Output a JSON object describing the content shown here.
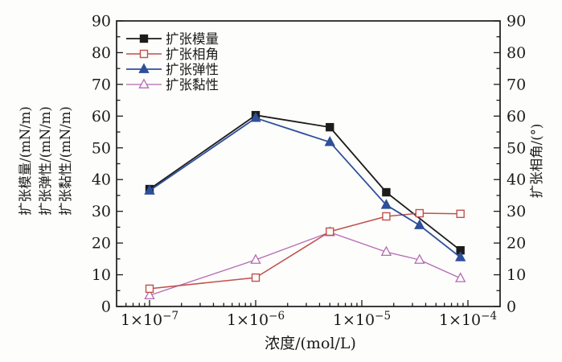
{
  "figure": {
    "background": "#fdfdfb",
    "axis_color": "#1a1a1a",
    "text_color": "#1a1a1a"
  },
  "chart_data": {
    "type": "line",
    "x_axis": {
      "label": "浓度/(mol/L)",
      "scale": "log",
      "min": 5e-08,
      "max": 0.0002,
      "major_ticks": [
        {
          "value": 1e-07,
          "label_base": "1×10",
          "label_exp": "−7"
        },
        {
          "value": 1e-06,
          "label_base": "1×10",
          "label_exp": "−6"
        },
        {
          "value": 1e-05,
          "label_base": "1×10",
          "label_exp": "−5"
        },
        {
          "value": 0.0001,
          "label_base": "1×10",
          "label_exp": "−4"
        }
      ]
    },
    "y_axis_left": {
      "labels": [
        "扩张模量/(mN/m)",
        "扩张弹性/(mN/m)",
        "扩张黏性/(mN/m)"
      ],
      "min": 0,
      "max": 90,
      "major_step": 10,
      "minor_step": 5,
      "ticks": [
        0,
        10,
        20,
        30,
        40,
        50,
        60,
        70,
        80,
        90
      ]
    },
    "y_axis_right": {
      "label": "扩张相角/(°)",
      "min": 0,
      "max": 90,
      "major_step": 10,
      "minor_step": 5,
      "ticks": [
        0,
        10,
        20,
        30,
        40,
        50,
        60,
        70,
        80,
        90
      ]
    },
    "series": [
      {
        "id": "dilational-modulus",
        "name": "扩张模量",
        "color": "#1c1c1c",
        "marker": "square",
        "marker_fill": "solid",
        "stroke_width": 1.8,
        "x": [
          1e-07,
          1e-06,
          5e-06,
          1.7e-05,
          8.5e-05
        ],
        "y": [
          37,
          60.3,
          56.5,
          36,
          17.7
        ]
      },
      {
        "id": "dilational-phase-angle",
        "name": "扩张相角",
        "color": "#c0504d",
        "marker": "square",
        "marker_fill": "open",
        "stroke_width": 1.5,
        "x": [
          1e-07,
          1e-06,
          5e-06,
          1.7e-05,
          3.5e-05,
          8.5e-05
        ],
        "y": [
          5.6,
          9.1,
          23.6,
          28.4,
          29.4,
          29.2
        ]
      },
      {
        "id": "dilational-elasticity",
        "name": "扩张弹性",
        "color": "#2e4f9b",
        "marker": "triangle",
        "marker_fill": "solid",
        "stroke_width": 1.8,
        "x": [
          1e-07,
          1e-06,
          5e-06,
          1.7e-05,
          3.5e-05,
          8.5e-05
        ],
        "y": [
          36.5,
          59.4,
          51.8,
          32,
          25.6,
          15.5
        ]
      },
      {
        "id": "dilational-viscosity",
        "name": "扩张黏性",
        "color": "#b46ab4",
        "marker": "triangle",
        "marker_fill": "open",
        "stroke_width": 1.3,
        "x": [
          1e-07,
          1e-06,
          5e-06,
          1.7e-05,
          3.5e-05,
          8.5e-05
        ],
        "y": [
          3.5,
          14.7,
          23.4,
          17.2,
          14.7,
          8.9
        ]
      }
    ],
    "draw_order": [
      0,
      3,
      1,
      2
    ],
    "legend": {
      "position": "top-left-inside"
    }
  }
}
